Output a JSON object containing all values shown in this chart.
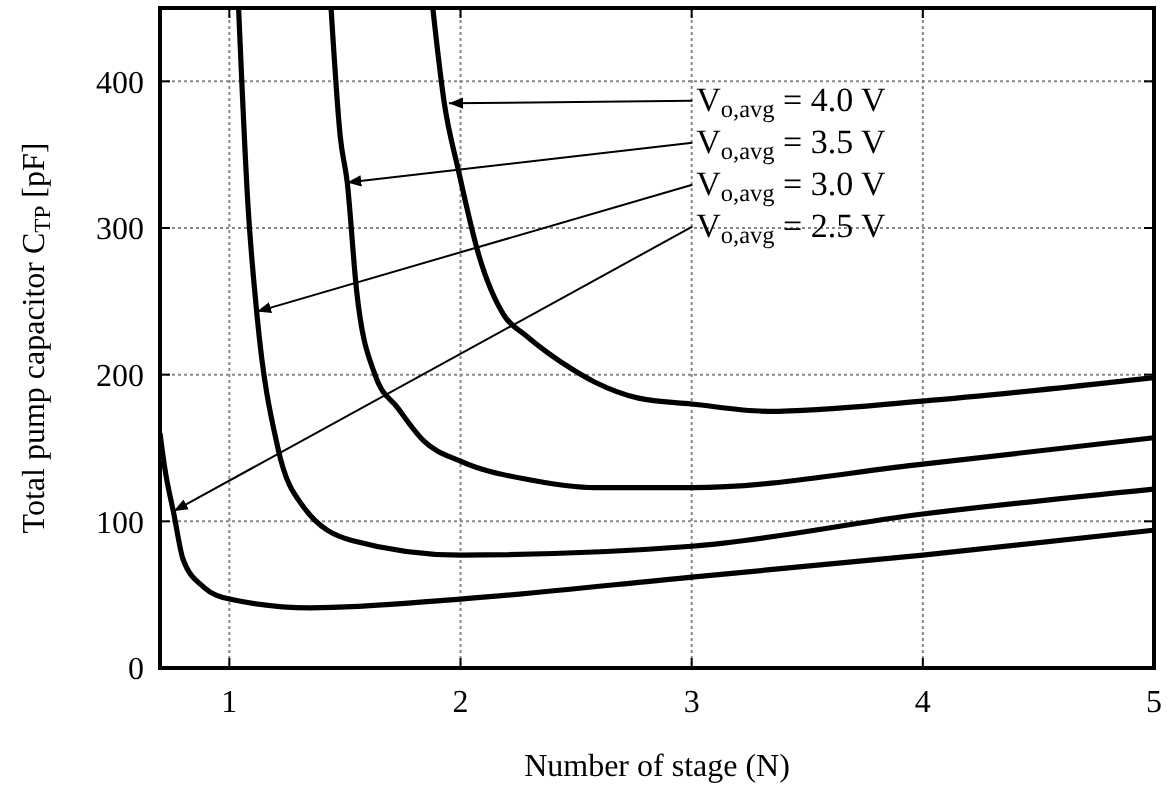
{
  "chart_data": {
    "type": "line",
    "xlabel": "Number of stage (N)",
    "ylabel": "Total pump capacitor C$_{TP}$ [pF]",
    "xlim": [
      0.7,
      5
    ],
    "ylim": [
      0,
      450
    ],
    "xticks": [
      1,
      2,
      3,
      4,
      5
    ],
    "yticks": [
      0,
      100,
      200,
      300,
      400
    ],
    "grid": true,
    "marker": "none",
    "line_style": "solid",
    "series": [
      {
        "color": "#000000",
        "x": [
          0.7,
          0.72,
          0.76,
          0.8,
          0.89,
          1.0,
          1.35,
          2.0,
          3.0,
          4.0,
          5.0
        ],
        "values": [
          160,
          137,
          105,
          74,
          55,
          47,
          41,
          47,
          62,
          77,
          94
        ]
      },
      {
        "color": "#000000",
        "x": [
          1.04,
          1.08,
          1.12,
          1.21,
          1.32,
          1.53,
          2.0,
          3.0,
          4.0,
          5.0
        ],
        "values": [
          450,
          317,
          240,
          150,
          110,
          87,
          77,
          83,
          105,
          122
        ]
      },
      {
        "color": "#000000",
        "x": [
          1.44,
          1.48,
          1.51,
          1.55,
          1.63,
          1.73,
          1.84,
          2.0,
          2.31,
          2.58,
          3.0,
          4.0,
          5.0
        ],
        "values": [
          450,
          362,
          331,
          258,
          200,
          177,
          155,
          141,
          128,
          123,
          123,
          139,
          157
        ]
      },
      {
        "color": "#000000",
        "x": [
          1.88,
          1.93,
          1.99,
          2.08,
          2.19,
          2.28,
          2.48,
          2.58,
          2.77,
          3.0,
          3.33,
          4.0,
          5.0
        ],
        "values": [
          450,
          385,
          340,
          281,
          240,
          227,
          204,
          195,
          184,
          180,
          175,
          182,
          198
        ]
      }
    ],
    "annotations": [
      {
        "text": "V$_{o,avg}$ = 4.0 V",
        "x": 1.95,
        "y": 385
      },
      {
        "text": "V$_{o,avg}$ = 3.5 V",
        "x": 1.51,
        "y": 331
      },
      {
        "text": "V$_{o,avg}$ = 3.0 V",
        "x": 1.12,
        "y": 243
      },
      {
        "text": "V$_{o,avg}$ = 2.5 V",
        "x": 0.76,
        "y": 107
      }
    ]
  }
}
